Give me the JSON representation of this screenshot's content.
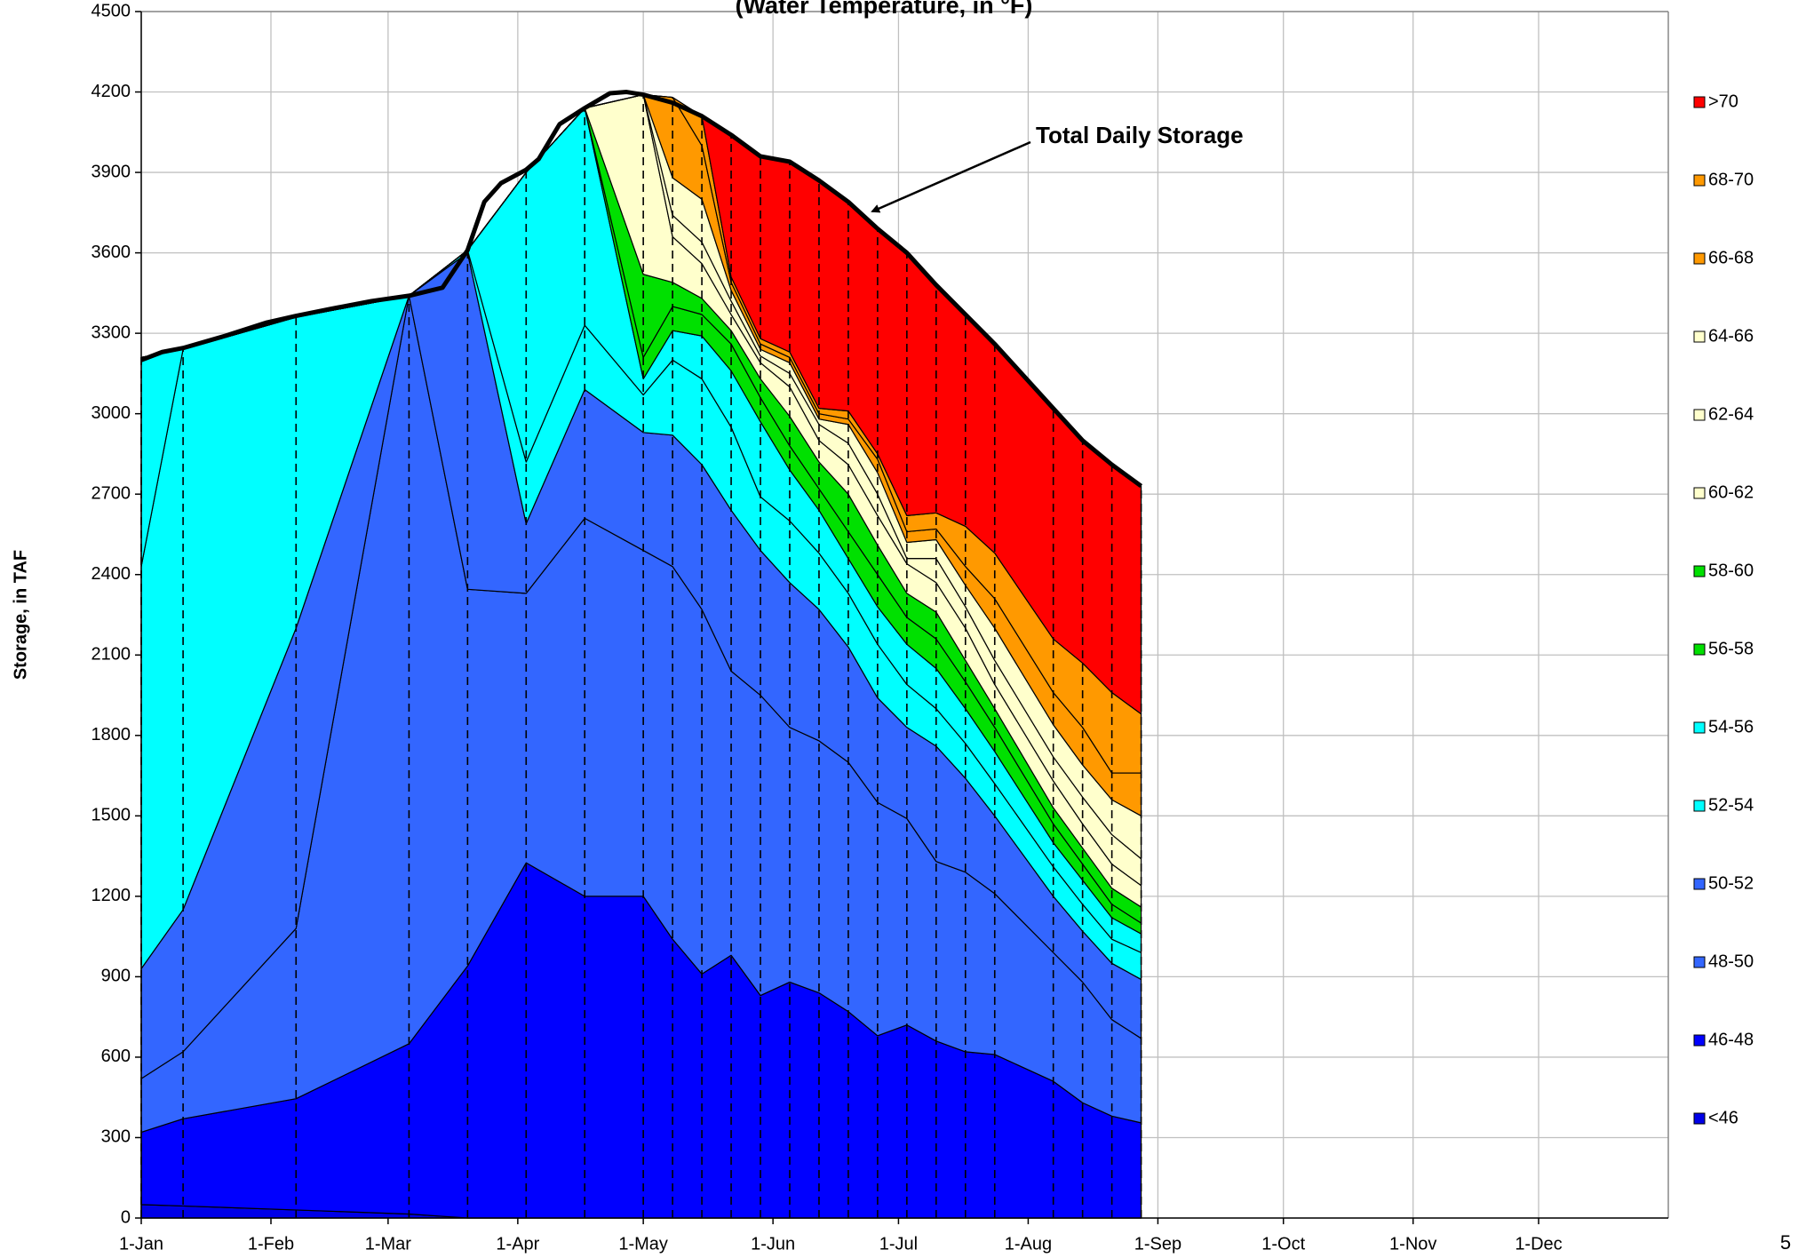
{
  "chart_data": {
    "type": "stacked_area",
    "title": "(Water Temperature, in °F)",
    "y_label": "Storage, in TAF",
    "page_number": "5",
    "annotation": {
      "text": "Total Daily Storage"
    },
    "xlim": [
      0,
      365
    ],
    "xticks": [
      {
        "value": 0,
        "label": "1-Jan"
      },
      {
        "value": 31,
        "label": "1-Feb"
      },
      {
        "value": 59,
        "label": "1-Mar"
      },
      {
        "value": 90,
        "label": "1-Apr"
      },
      {
        "value": 120,
        "label": "1-May"
      },
      {
        "value": 151,
        "label": "1-Jun"
      },
      {
        "value": 181,
        "label": "1-Jul"
      },
      {
        "value": 212,
        "label": "1-Aug"
      },
      {
        "value": 243,
        "label": "1-Sep"
      },
      {
        "value": 273,
        "label": "1-Oct"
      },
      {
        "value": 304,
        "label": "1-Nov"
      },
      {
        "value": 334,
        "label": "1-Dec"
      }
    ],
    "ylim": [
      0,
      4500
    ],
    "yticks": [
      0,
      300,
      600,
      900,
      1200,
      1500,
      1800,
      2100,
      2400,
      2700,
      3000,
      3300,
      3600,
      3900,
      4200,
      4500
    ],
    "grid": true,
    "legend": "right",
    "x": [
      0,
      10,
      37,
      64,
      78,
      92,
      106,
      120,
      127,
      134,
      141,
      148,
      155,
      162,
      169,
      176,
      183,
      190,
      197,
      204,
      218,
      225,
      232,
      239
    ],
    "series": [
      {
        "name": "<46",
        "color": "#0000e8",
        "values": [
          50,
          45,
          30,
          15,
          0,
          0,
          0,
          0,
          0,
          0,
          0,
          0,
          0,
          0,
          0,
          0,
          0,
          0,
          0,
          0,
          0,
          0,
          0,
          0
        ]
      },
      {
        "name": "46-48",
        "color": "#0000ff",
        "values": [
          270,
          325,
          415,
          635,
          940,
          1325,
          1200,
          1200,
          1040,
          910,
          980,
          830,
          880,
          840,
          770,
          680,
          720,
          660,
          620,
          610,
          510,
          430,
          380,
          355
        ]
      },
      {
        "name": "48-50",
        "color": "#3366ff",
        "values": [
          200,
          250,
          635,
          2790,
          1405,
          1005,
          1410,
          1290,
          1390,
          1360,
          1060,
          1120,
          950,
          940,
          930,
          870,
          770,
          670,
          670,
          600,
          480,
          450,
          360,
          315
        ]
      },
      {
        "name": "50-52",
        "color": "#3366ff",
        "values": [
          410,
          530,
          1120,
          0,
          1255,
          260,
          480,
          440,
          490,
          540,
          600,
          540,
          540,
          490,
          430,
          390,
          340,
          430,
          350,
          290,
          210,
          190,
          210,
          220
        ]
      },
      {
        "name": "52-54",
        "color": "#00ffff",
        "values": [
          1500,
          2090,
          1160,
          0,
          10,
          230,
          240,
          140,
          280,
          320,
          310,
          200,
          230,
          210,
          200,
          200,
          160,
          140,
          130,
          120,
          110,
          100,
          90,
          100
        ]
      },
      {
        "name": "54-56",
        "color": "#00ffff",
        "values": [
          780,
          0,
          0,
          0,
          0,
          1080,
          810,
          60,
          110,
          160,
          210,
          280,
          190,
          160,
          130,
          140,
          150,
          150,
          130,
          120,
          90,
          90,
          80,
          70
        ]
      },
      {
        "name": "56-58",
        "color": "#00e000",
        "values": [
          0,
          0,
          0,
          0,
          0,
          0,
          0,
          80,
          90,
          80,
          100,
          90,
          90,
          80,
          100,
          120,
          100,
          110,
          100,
          90,
          70,
          60,
          50,
          40
        ]
      },
      {
        "name": "58-60",
        "color": "#00e000",
        "values": [
          0,
          0,
          0,
          0,
          0,
          0,
          0,
          310,
          90,
          60,
          50,
          70,
          110,
          100,
          140,
          110,
          90,
          100,
          80,
          70,
          60,
          60,
          60,
          60
        ]
      },
      {
        "name": "60-62",
        "color": "#ffffcc",
        "values": [
          0,
          0,
          0,
          0,
          0,
          0,
          0,
          670,
          170,
          130,
          60,
          60,
          110,
          80,
          110,
          110,
          110,
          110,
          120,
          90,
          100,
          90,
          90,
          80
        ]
      },
      {
        "name": "62-64",
        "color": "#ffffcc",
        "values": [
          0,
          0,
          0,
          0,
          0,
          0,
          0,
          0,
          80,
          80,
          50,
          25,
          50,
          60,
          80,
          80,
          20,
          90,
          80,
          90,
          90,
          100,
          110,
          100
        ]
      },
      {
        "name": "64-66",
        "color": "#ffffcc",
        "values": [
          0,
          0,
          0,
          0,
          0,
          0,
          0,
          0,
          140,
          160,
          40,
          25,
          40,
          20,
          70,
          80,
          60,
          70,
          80,
          120,
          120,
          120,
          130,
          160
        ]
      },
      {
        "name": "66-68",
        "color": "#ff9900",
        "values": [
          0,
          0,
          0,
          0,
          0,
          0,
          0,
          0,
          300,
          200,
          30,
          20,
          20,
          20,
          20,
          50,
          40,
          40,
          70,
          110,
          120,
          140,
          100,
          160
        ]
      },
      {
        "name": "68-70",
        "color": "#ff9900",
        "values": [
          0,
          0,
          0,
          0,
          0,
          0,
          0,
          0,
          0,
          110,
          20,
          20,
          20,
          20,
          30,
          20,
          60,
          60,
          150,
          170,
          200,
          240,
          300,
          220
        ]
      },
      {
        "name": ">70",
        "color": "#ff0000",
        "values": [
          0,
          0,
          0,
          0,
          0,
          0,
          0,
          0,
          0,
          0,
          530,
          680,
          710,
          850,
          780,
          840,
          980,
          850,
          790,
          780,
          860,
          830,
          850,
          850
        ]
      }
    ],
    "total": {
      "x": [
        0,
        5,
        10,
        20,
        30,
        37,
        45,
        55,
        64,
        72,
        78,
        82,
        86,
        92,
        95,
        100,
        106,
        112,
        116,
        120,
        127,
        134,
        141,
        148,
        155,
        162,
        169,
        176,
        183,
        190,
        197,
        204,
        211,
        218,
        225,
        232,
        239
      ],
      "values": [
        3200,
        3230,
        3245,
        3290,
        3340,
        3365,
        3390,
        3420,
        3440,
        3470,
        3610,
        3790,
        3860,
        3910,
        3950,
        4080,
        4140,
        4195,
        4200,
        4190,
        4160,
        4110,
        4040,
        3960,
        3940,
        3870,
        3790,
        3690,
        3600,
        3480,
        3370,
        3260,
        3140,
        3020,
        2900,
        2810,
        2730
      ]
    }
  }
}
